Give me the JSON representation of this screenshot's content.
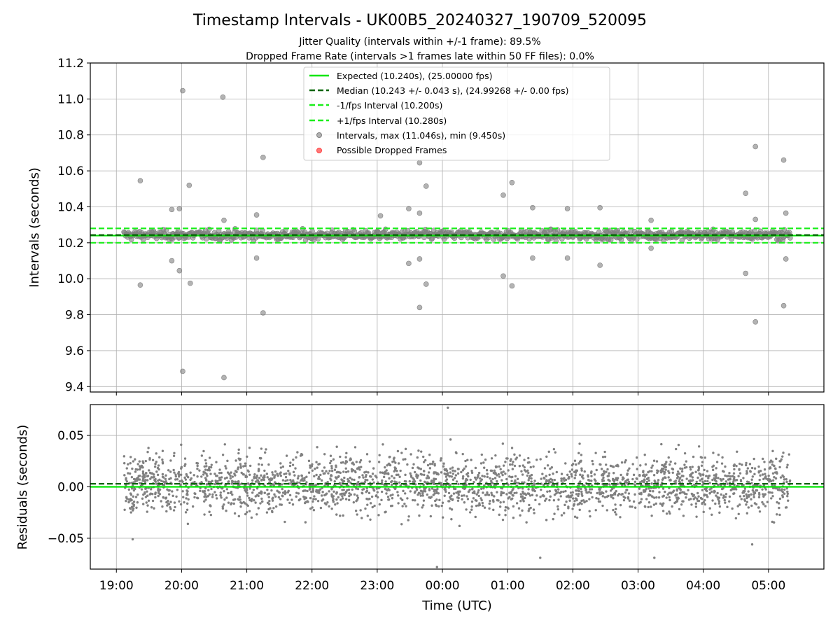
{
  "figure": {
    "title": "Timestamp Intervals - UK00B5_20240327_190709_520095",
    "subtitle1": "Jitter Quality (intervals within +/-1 frame): 89.5%",
    "subtitle2": "Dropped Frame Rate (intervals >1 frames late within 50 FF files): 0.0%"
  },
  "colors": {
    "expected": "#00e600",
    "median": "#006400",
    "interval_lines": "#1aee1a",
    "points": "#808080",
    "dropped": "#ff4040",
    "grid": "#b0b0b0"
  },
  "chart_data": [
    {
      "type": "scatter",
      "panel": "top",
      "ylabel": "Intervals (seconds)",
      "ylim": [
        9.37,
        11.2
      ],
      "xlim": [
        "2024-03-27 18:36",
        "2024-03-28 05:51"
      ],
      "yticks": [
        "9.4",
        "9.6",
        "9.8",
        "10.0",
        "10.2",
        "10.4",
        "10.6",
        "10.8",
        "11.0",
        "11.2"
      ],
      "grid": true,
      "legend_placement": "upper center",
      "reference_lines": [
        {
          "name": "Expected (10.240s), (25.00000 fps)",
          "y": 10.24,
          "style": "solid",
          "color": "#00e600"
        },
        {
          "name": "Median (10.243 +/- 0.043 s), (24.99268 +/- 0.00 fps)",
          "y": 10.243,
          "style": "dashed",
          "color": "#006400"
        },
        {
          "name": "-1/fps Interval (10.200s)",
          "y": 10.2,
          "style": "dashed",
          "color": "#1aee1a"
        },
        {
          "name": "+1/fps Interval (10.280s)",
          "y": 10.28,
          "style": "dashed",
          "color": "#1aee1a"
        }
      ],
      "series": [
        {
          "name": "Intervals, max (11.046s), min (9.450s)",
          "color": "#808080",
          "dense_band": {
            "x_start": "2024-03-27 19:07",
            "x_end": "2024-03-28 05:20",
            "y_min": 10.19,
            "y_max": 10.3
          },
          "outliers": [
            {
              "x": "2024-03-27 19:22",
              "y": 10.545
            },
            {
              "x": "2024-03-27 19:22",
              "y": 9.965
            },
            {
              "x": "2024-03-27 19:51",
              "y": 10.385
            },
            {
              "x": "2024-03-27 19:51",
              "y": 10.1
            },
            {
              "x": "2024-03-27 19:58",
              "y": 10.39
            },
            {
              "x": "2024-03-27 19:58",
              "y": 10.045
            },
            {
              "x": "2024-03-27 20:01",
              "y": 11.046
            },
            {
              "x": "2024-03-27 20:01",
              "y": 9.485
            },
            {
              "x": "2024-03-27 20:07",
              "y": 10.52
            },
            {
              "x": "2024-03-27 20:08",
              "y": 9.975
            },
            {
              "x": "2024-03-27 20:38",
              "y": 11.01
            },
            {
              "x": "2024-03-27 20:39",
              "y": 9.45
            },
            {
              "x": "2024-03-27 20:39",
              "y": 10.325
            },
            {
              "x": "2024-03-27 21:09",
              "y": 10.355
            },
            {
              "x": "2024-03-27 21:09",
              "y": 10.115
            },
            {
              "x": "2024-03-27 21:15",
              "y": 10.675
            },
            {
              "x": "2024-03-27 21:15",
              "y": 9.81
            },
            {
              "x": "2024-03-27 23:03",
              "y": 10.35
            },
            {
              "x": "2024-03-27 23:29",
              "y": 10.39
            },
            {
              "x": "2024-03-27 23:29",
              "y": 10.085
            },
            {
              "x": "2024-03-27 23:39",
              "y": 10.645
            },
            {
              "x": "2024-03-27 23:39",
              "y": 10.365
            },
            {
              "x": "2024-03-27 23:39",
              "y": 10.11
            },
            {
              "x": "2024-03-27 23:39",
              "y": 9.84
            },
            {
              "x": "2024-03-27 23:45",
              "y": 10.515
            },
            {
              "x": "2024-03-27 23:45",
              "y": 9.97
            },
            {
              "x": "2024-03-28 00:56",
              "y": 10.465
            },
            {
              "x": "2024-03-28 00:56",
              "y": 10.015
            },
            {
              "x": "2024-03-28 01:04",
              "y": 10.535
            },
            {
              "x": "2024-03-28 01:04",
              "y": 9.96
            },
            {
              "x": "2024-03-28 01:23",
              "y": 10.395
            },
            {
              "x": "2024-03-28 01:23",
              "y": 10.115
            },
            {
              "x": "2024-03-28 01:55",
              "y": 10.39
            },
            {
              "x": "2024-03-28 01:55",
              "y": 10.115
            },
            {
              "x": "2024-03-28 02:25",
              "y": 10.395
            },
            {
              "x": "2024-03-28 02:25",
              "y": 10.075
            },
            {
              "x": "2024-03-28 03:12",
              "y": 10.325
            },
            {
              "x": "2024-03-28 03:12",
              "y": 10.17
            },
            {
              "x": "2024-03-28 04:39",
              "y": 10.475
            },
            {
              "x": "2024-03-28 04:39",
              "y": 10.03
            },
            {
              "x": "2024-03-28 04:48",
              "y": 10.735
            },
            {
              "x": "2024-03-28 04:48",
              "y": 9.76
            },
            {
              "x": "2024-03-28 04:48",
              "y": 10.33
            },
            {
              "x": "2024-03-28 05:14",
              "y": 10.66
            },
            {
              "x": "2024-03-28 05:14",
              "y": 9.85
            },
            {
              "x": "2024-03-28 05:16",
              "y": 10.365
            },
            {
              "x": "2024-03-28 05:16",
              "y": 10.11
            }
          ]
        },
        {
          "name": "Possible Dropped Frames",
          "color": "#ff4040",
          "points": []
        }
      ]
    },
    {
      "type": "scatter",
      "panel": "bottom",
      "ylabel": "Residuals (seconds)",
      "xlabel": "Time (UTC)",
      "ylim": [
        -0.08,
        0.08
      ],
      "xlim": [
        "2024-03-27 18:36",
        "2024-03-28 05:51"
      ],
      "yticks": [
        "−0.05",
        "0.00",
        "0.05"
      ],
      "xticks": [
        "19:00",
        "20:00",
        "21:00",
        "22:00",
        "23:00",
        "00:00",
        "01:00",
        "02:00",
        "03:00",
        "04:00",
        "05:00"
      ],
      "grid": true,
      "reference_lines": [
        {
          "y": 0.0,
          "style": "solid",
          "color": "#00e600"
        },
        {
          "y": 0.003,
          "style": "dashed",
          "color": "#006400"
        }
      ],
      "series": [
        {
          "color": "#808080",
          "dense_band": {
            "x_start": "2024-03-27 19:07",
            "x_end": "2024-03-28 05:20",
            "y_min": -0.045,
            "y_max": 0.05
          },
          "outliers": [
            {
              "x": "2024-03-28 00:05",
              "y": 0.077
            },
            {
              "x": "2024-03-27 23:55",
              "y": -0.078
            },
            {
              "x": "2024-03-28 03:15",
              "y": -0.069
            },
            {
              "x": "2024-03-28 01:30",
              "y": -0.069
            },
            {
              "x": "2024-03-27 19:15",
              "y": -0.051
            },
            {
              "x": "2024-03-28 04:45",
              "y": -0.056
            }
          ]
        }
      ]
    }
  ]
}
